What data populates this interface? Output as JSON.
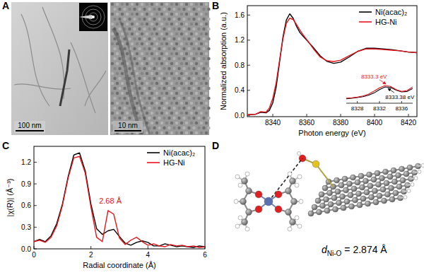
{
  "panel_letters": [
    "A",
    "B",
    "C",
    "D"
  ],
  "tem_images": {
    "scale_bars": [
      "100 nm",
      "10 nm"
    ]
  },
  "model": {
    "symbol": "d",
    "subscript": "Ni-O",
    "text": "= 2.874 Å"
  },
  "chart_data": [
    {
      "type": "line",
      "x_label": "Photon energy (eV)",
      "y_label": "Normalized absorption (a.u.)",
      "x": [
        8325,
        8330,
        8333,
        8336,
        8338,
        8340,
        8342,
        8344,
        8346,
        8348,
        8350,
        8352,
        8354,
        8356,
        8358,
        8360,
        8364,
        8368,
        8372,
        8376,
        8380,
        8385,
        8390,
        8395,
        8400,
        8405,
        8410,
        8415,
        8420,
        8425
      ],
      "series": [
        {
          "name": "Ni(acac)₂",
          "color": "#000000",
          "values": [
            0.01,
            0.02,
            0.05,
            0.04,
            0.08,
            0.2,
            0.45,
            0.85,
            1.25,
            1.52,
            1.62,
            1.55,
            1.42,
            1.32,
            1.26,
            1.2,
            1.08,
            0.95,
            0.86,
            0.83,
            0.85,
            0.93,
            1.02,
            1.07,
            1.07,
            1.06,
            1.05,
            1.03,
            1.01,
            1.0
          ]
        },
        {
          "name": "HG-Ni",
          "color": "#e8141c",
          "values": [
            0.01,
            0.02,
            0.06,
            0.05,
            0.12,
            0.27,
            0.52,
            0.88,
            1.22,
            1.47,
            1.55,
            1.53,
            1.45,
            1.36,
            1.28,
            1.21,
            1.06,
            0.93,
            0.87,
            0.86,
            0.88,
            0.95,
            1.02,
            1.06,
            1.06,
            1.05,
            1.04,
            1.03,
            1.01,
            1.0
          ]
        }
      ],
      "xlim": [
        8325,
        8425
      ],
      "ylim": [
        -0.02,
        1.75
      ],
      "xticks": [
        8340,
        8360,
        8380,
        8400,
        8420
      ],
      "yticks": [
        {
          "value": 0,
          "label": "0.0"
        },
        0.4,
        0.8,
        1.2,
        1.6
      ],
      "legend": "top-right"
    },
    {
      "type": "line",
      "x": [
        8326,
        8327,
        8328,
        8329,
        8330,
        8331,
        8332,
        8333,
        8334,
        8335,
        8336,
        8337,
        8338
      ],
      "series": [
        {
          "color": "#000000",
          "values": [
            0.02,
            0.022,
            0.025,
            0.029,
            0.035,
            0.045,
            0.06,
            0.072,
            0.07,
            0.058,
            0.05,
            0.052,
            0.065
          ]
        },
        {
          "color": "#e8141c",
          "values": [
            0.022,
            0.024,
            0.027,
            0.032,
            0.04,
            0.053,
            0.068,
            0.078,
            0.074,
            0.06,
            0.052,
            0.056,
            0.072
          ]
        }
      ],
      "xlim": [
        8326,
        8338
      ],
      "ylim": [
        0,
        0.1
      ],
      "xticks": [
        8328,
        8332,
        8336
      ],
      "tick_labels": "x",
      "annotations": [
        {
          "text": "8333.3 eV",
          "x": 8333.3,
          "y": 0.078,
          "color": "#e8141c"
        },
        {
          "text": "8333.38 eV",
          "x": 8333.38,
          "y": 0.072,
          "color": "#000000"
        }
      ]
    },
    {
      "type": "line",
      "x_label": "Radial coordinate (Å)",
      "y_label": "|χ(R)| (Å⁻³)",
      "x": [
        0,
        0.2,
        0.4,
        0.6,
        0.8,
        1.0,
        1.2,
        1.4,
        1.6,
        1.8,
        2.0,
        2.2,
        2.4,
        2.6,
        2.8,
        3.0,
        3.2,
        3.4,
        3.6,
        3.8,
        4.0,
        4.2,
        4.4,
        4.6,
        4.8,
        5.0,
        5.2,
        5.4,
        5.6,
        5.8,
        6.0
      ],
      "series": [
        {
          "name": "Ni(acac)₂",
          "color": "#000000",
          "values": [
            0.1,
            0.13,
            0.1,
            0.18,
            0.35,
            0.62,
            1.0,
            1.3,
            1.33,
            1.08,
            0.62,
            0.28,
            0.2,
            0.25,
            0.27,
            0.17,
            0.08,
            0.05,
            0.09,
            0.11,
            0.09,
            0.04,
            0.04,
            0.07,
            0.05,
            0.03,
            0.04,
            0.03,
            0.02,
            0.04,
            0.03
          ]
        },
        {
          "name": "HG-Ni",
          "color": "#e8141c",
          "values": [
            0.1,
            0.12,
            0.09,
            0.16,
            0.32,
            0.6,
            0.98,
            1.26,
            1.28,
            1.05,
            0.58,
            0.16,
            0.1,
            0.53,
            0.48,
            0.15,
            0.06,
            0.12,
            0.16,
            0.1,
            0.05,
            0.07,
            0.04,
            0.03,
            0.06,
            0.04,
            0.05,
            0.03,
            0.04,
            0.02,
            0.03
          ]
        }
      ],
      "xlim": [
        0,
        6
      ],
      "ylim": [
        0,
        1.42
      ],
      "xticks": [
        0,
        2,
        4,
        6
      ],
      "yticks": [
        {
          "value": 0,
          "label": "0.0"
        },
        0.3,
        0.6,
        0.9,
        1.2
      ],
      "legend": "top-right",
      "annotations": [
        {
          "text": "2.68 Å",
          "x": 2.68,
          "y": 0.57,
          "color": "#e8141c"
        }
      ]
    }
  ]
}
